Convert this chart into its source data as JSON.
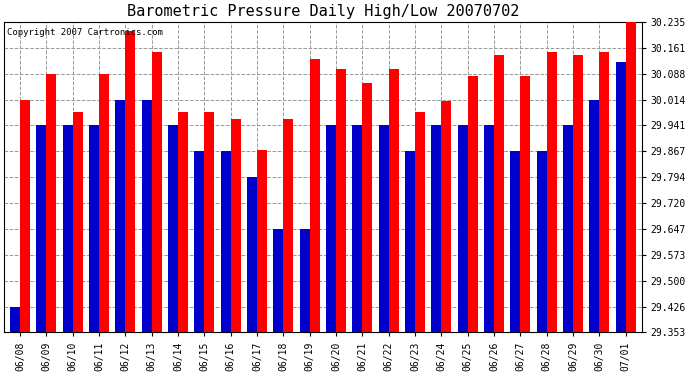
{
  "title": "Barometric Pressure Daily High/Low 20070702",
  "copyright": "Copyright 2007 Cartronics.com",
  "ylim": [
    29.353,
    30.235
  ],
  "yticks": [
    29.353,
    29.426,
    29.5,
    29.573,
    29.647,
    29.72,
    29.794,
    29.867,
    29.941,
    30.014,
    30.088,
    30.161,
    30.235
  ],
  "dates": [
    "06/08",
    "06/09",
    "06/10",
    "06/11",
    "06/12",
    "06/13",
    "06/14",
    "06/15",
    "06/16",
    "06/17",
    "06/18",
    "06/19",
    "06/20",
    "06/21",
    "06/22",
    "06/23",
    "06/24",
    "06/25",
    "06/26",
    "06/27",
    "06/28",
    "06/29",
    "06/30",
    "07/01"
  ],
  "highs": [
    30.014,
    30.088,
    29.98,
    30.088,
    30.21,
    30.15,
    29.98,
    29.98,
    29.96,
    29.87,
    29.96,
    30.13,
    30.1,
    30.06,
    30.1,
    29.98,
    30.01,
    30.08,
    30.14,
    30.08,
    30.15,
    30.14,
    30.15,
    30.235
  ],
  "lows": [
    29.426,
    29.941,
    29.941,
    29.941,
    30.014,
    30.014,
    29.941,
    29.867,
    29.867,
    29.794,
    29.647,
    29.647,
    29.941,
    29.941,
    29.941,
    29.867,
    29.941,
    29.941,
    29.941,
    29.867,
    29.867,
    29.941,
    30.014,
    30.12
  ],
  "high_color": "#ff0000",
  "low_color": "#0000cc",
  "bg_color": "#ffffff",
  "plot_bg_color": "#ffffff",
  "grid_color": "#999999",
  "title_fontsize": 11,
  "bar_width": 0.38
}
